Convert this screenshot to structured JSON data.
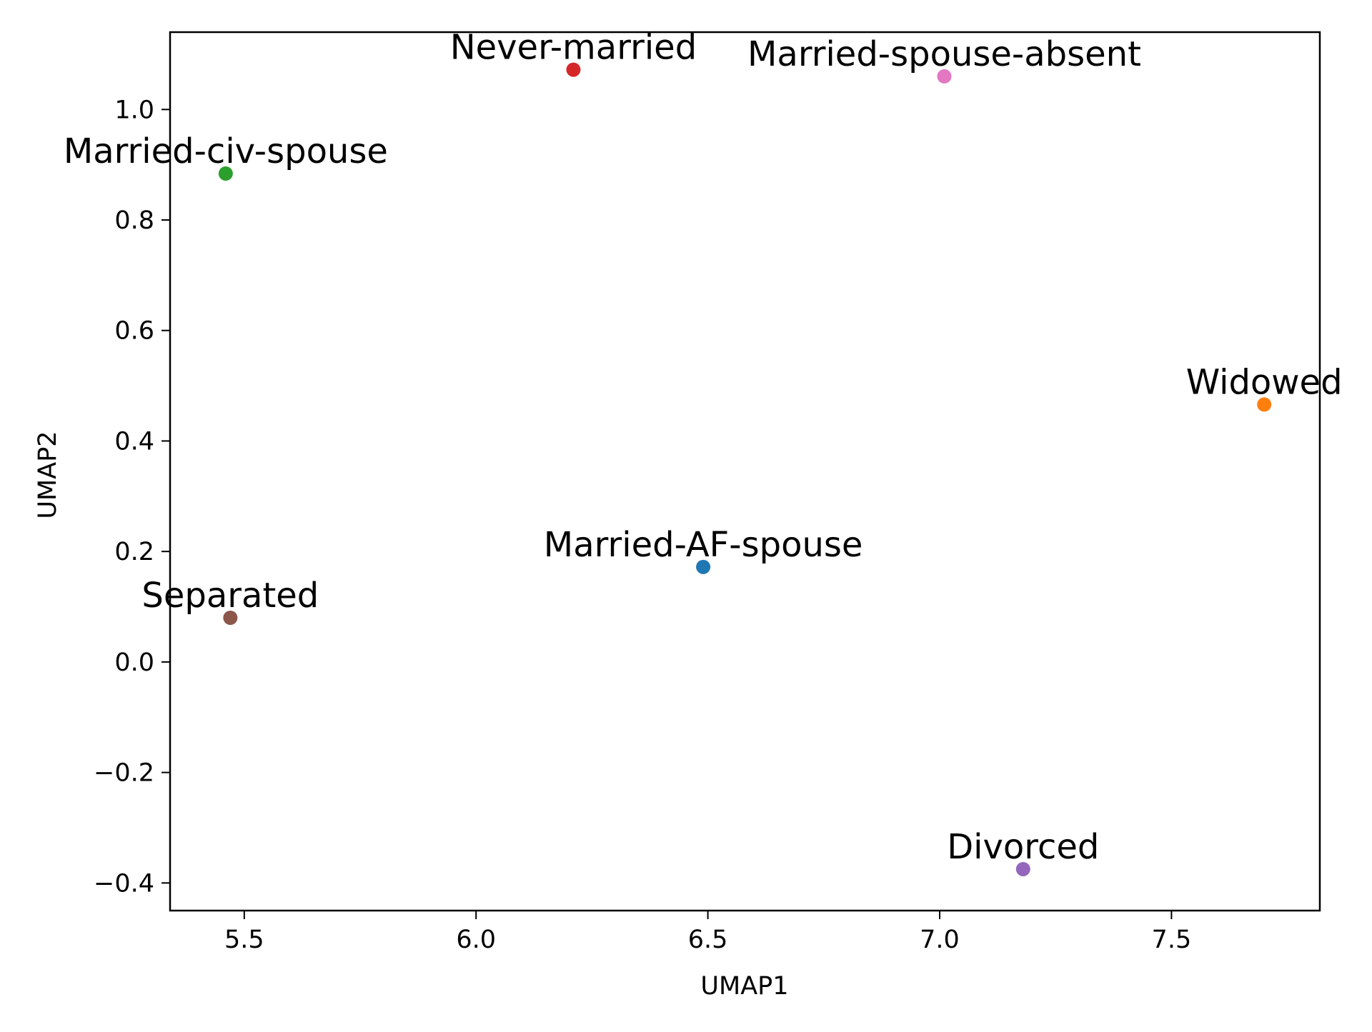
{
  "chart_data": {
    "type": "scatter",
    "title": "",
    "xlabel": "UMAP1",
    "ylabel": "UMAP2",
    "xlim": [
      5.34,
      7.82
    ],
    "ylim": [
      -0.45,
      1.14
    ],
    "xticks": [
      5.5,
      6.0,
      6.5,
      7.0,
      7.5
    ],
    "xtick_labels": [
      "5.5",
      "6.0",
      "6.5",
      "7.0",
      "7.5"
    ],
    "yticks": [
      -0.4,
      -0.2,
      0.0,
      0.2,
      0.4,
      0.6,
      0.8,
      1.0
    ],
    "ytick_labels": [
      "−0.4",
      "−0.2",
      "0.0",
      "0.2",
      "0.4",
      "0.6",
      "0.8",
      "1.0"
    ],
    "grid": false,
    "legend": "none",
    "points": [
      {
        "label": "Married-AF-spouse",
        "x": 6.49,
        "y": 0.172,
        "color": "#1f77b4"
      },
      {
        "label": "Widowed",
        "x": 7.7,
        "y": 0.466,
        "color": "#ff7f0e"
      },
      {
        "label": "Married-civ-spouse",
        "x": 5.46,
        "y": 0.884,
        "color": "#2ca02c"
      },
      {
        "label": "Never-married",
        "x": 6.21,
        "y": 1.072,
        "color": "#d62728"
      },
      {
        "label": "Divorced",
        "x": 7.18,
        "y": -0.375,
        "color": "#9467bd"
      },
      {
        "label": "Separated",
        "x": 5.47,
        "y": 0.08,
        "color": "#8c564b"
      },
      {
        "label": "Married-spouse-absent",
        "x": 7.01,
        "y": 1.06,
        "color": "#e377c2"
      }
    ]
  }
}
